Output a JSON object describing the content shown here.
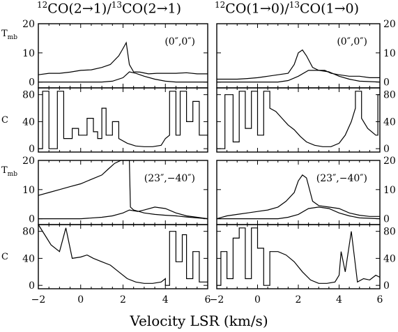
{
  "figure": {
    "column_titles": [
      {
        "iso_a": "12",
        "mol_a": "CO(2→1)/",
        "iso_b": "13",
        "mol_b": "CO(2→1)"
      },
      {
        "iso_a": "12",
        "mol_a": "CO(1→0)/",
        "iso_b": "13",
        "mol_b": "CO(1→0)"
      }
    ],
    "xlabel": "Velocity LSR (km/s)",
    "colors": {
      "line": "#000000",
      "background": "#ffffff"
    }
  },
  "chart_data": [
    {
      "type": "line",
      "panel": "top-left",
      "ylabel": "T",
      "ylabel_sub": "mb",
      "annotation": "(0″,0″)",
      "xlim": [
        -2,
        6
      ],
      "ylim": [
        -2,
        20
      ],
      "xticks": [],
      "yticks": [
        0,
        10,
        20
      ],
      "yticks_side": "left",
      "series": [
        {
          "x": [
            -2,
            -1.5,
            -1,
            -0.5,
            0,
            0.5,
            1,
            1.4,
            1.8,
            2,
            2.15,
            2.3,
            2.5,
            2.8,
            3.2,
            3.6,
            4,
            4.5,
            5,
            5.5,
            6
          ],
          "y": [
            2.5,
            3,
            3,
            3.4,
            4,
            4.2,
            5,
            6,
            9,
            11.5,
            13.5,
            6,
            3.5,
            3.4,
            2.8,
            3,
            3,
            3,
            3.2,
            2.8,
            2.8
          ]
        },
        {
          "x": [
            -2,
            -1,
            0,
            0.5,
            1,
            1.5,
            2,
            2.3,
            2.6,
            3,
            3.5,
            4,
            4.5,
            5,
            5.5,
            6
          ],
          "y": [
            0,
            0,
            0,
            0,
            0,
            0.3,
            1.5,
            3.5,
            3,
            2,
            1,
            0.3,
            0,
            0,
            0,
            0
          ]
        }
      ]
    },
    {
      "type": "line",
      "panel": "top-right",
      "ylabel": "",
      "ylabel_sub": "",
      "annotation": "(0″,0″)",
      "xlim": [
        -2,
        6
      ],
      "ylim": [
        -2,
        20
      ],
      "xticks": [],
      "yticks": [
        0,
        10,
        20
      ],
      "yticks_side": "right",
      "series": [
        {
          "x": [
            -2,
            -1,
            -0.5,
            0,
            0.5,
            1,
            1.5,
            1.8,
            2,
            2.2,
            2.4,
            2.7,
            3,
            3.3,
            3.6,
            4,
            4.5,
            5,
            5.5,
            6
          ],
          "y": [
            1,
            1,
            1.2,
            1.5,
            2,
            2.5,
            3,
            6,
            10,
            11,
            9,
            5,
            4,
            4,
            3,
            2.5,
            2,
            2,
            1.5,
            1.5
          ]
        },
        {
          "x": [
            -2,
            -1,
            0,
            1,
            1.5,
            2,
            2.5,
            3,
            3.5,
            4,
            4.5,
            5,
            6
          ],
          "y": [
            0,
            0,
            0,
            0,
            0.5,
            2,
            4,
            4,
            3.5,
            2,
            1,
            0.3,
            0
          ]
        }
      ]
    },
    {
      "type": "line",
      "panel": "upper-ratio-left",
      "ylabel": "C",
      "ylabel_sub": "",
      "annotation": "",
      "xlim": [
        -2,
        6
      ],
      "ylim": [
        -5,
        90
      ],
      "xticks": [],
      "yticks": [
        0,
        40,
        80
      ],
      "yticks_side": "left",
      "series": [
        {
          "x": [
            -2,
            -1.8,
            -1.8,
            -1.5,
            -1.5,
            -1.1,
            -1.1,
            -0.8,
            -0.8,
            -0.4,
            -0.4,
            -0.1,
            -0.1,
            0.3,
            0.3,
            0.6,
            0.6,
            0.8,
            0.8,
            1,
            1,
            1.2,
            1.2,
            1.5,
            1.5,
            1.8,
            1.8,
            2.2,
            2.6,
            3,
            3.4,
            3.8,
            4,
            4.2,
            4.2,
            4.5,
            4.5,
            4.7,
            4.7,
            5,
            5,
            5.3,
            5.3,
            5.6,
            5.6,
            6
          ],
          "y": [
            0,
            0,
            85,
            85,
            0,
            0,
            85,
            85,
            15,
            15,
            30,
            30,
            20,
            20,
            45,
            45,
            25,
            25,
            15,
            15,
            60,
            60,
            20,
            20,
            40,
            40,
            15,
            8,
            4,
            3,
            3,
            5,
            15,
            20,
            85,
            85,
            20,
            20,
            85,
            85,
            40,
            40,
            70,
            70,
            20,
            20
          ]
        }
      ]
    },
    {
      "type": "line",
      "panel": "upper-ratio-right",
      "ylabel": "",
      "ylabel_sub": "",
      "annotation": "",
      "xlim": [
        -2,
        6
      ],
      "ylim": [
        -5,
        90
      ],
      "xticks": [],
      "yticks": [
        0,
        40,
        80
      ],
      "yticks_side": "right",
      "series": [
        {
          "x": [
            -2,
            -1.6,
            -1.6,
            -1.2,
            -1.2,
            -0.9,
            -0.9,
            -0.6,
            -0.6,
            -0.3,
            -0.3,
            0,
            0,
            0.3,
            0.3,
            0.6,
            0.6,
            0.9,
            1.2,
            1.5,
            1.8,
            2.1,
            2.4,
            2.8,
            3.2,
            3.6,
            4,
            4.3,
            4.6,
            4.8,
            4.8,
            5.1,
            5.1,
            5.4,
            5.8,
            5.9,
            5.9,
            6
          ],
          "y": [
            0,
            0,
            80,
            80,
            10,
            10,
            85,
            85,
            30,
            30,
            85,
            85,
            20,
            20,
            85,
            85,
            60,
            55,
            45,
            35,
            28,
            18,
            10,
            5,
            3,
            3,
            8,
            20,
            40,
            60,
            85,
            85,
            45,
            30,
            20,
            20,
            80,
            80
          ]
        }
      ]
    },
    {
      "type": "line",
      "panel": "bottom-left",
      "ylabel": "T",
      "ylabel_sub": "mb",
      "annotation": "(23″,−40″)",
      "xlim": [
        -2,
        6
      ],
      "ylim": [
        -2,
        20
      ],
      "xticks": [],
      "yticks": [
        0,
        10,
        20
      ],
      "yticks_side": "left",
      "series": [
        {
          "x": [
            -2,
            -1.5,
            -1,
            -0.5,
            0,
            0.5,
            1,
            1.3,
            1.6,
            1.9,
            2.1,
            2.2,
            2.3,
            2.35,
            2.5,
            3,
            3.5,
            4,
            4.5,
            5,
            5.5,
            6
          ],
          "y": [
            8,
            9,
            10,
            11,
            12,
            13.5,
            15,
            17,
            19,
            20,
            20,
            20,
            20,
            4,
            3,
            2,
            1.5,
            1.2,
            1,
            0.6,
            0.3,
            0
          ]
        },
        {
          "x": [
            -2,
            -1,
            0,
            1,
            1.5,
            2,
            2.3,
            2.7,
            3,
            3.5,
            4,
            4.5,
            5,
            5.5,
            6
          ],
          "y": [
            0,
            0,
            0,
            0.5,
            1,
            2,
            3,
            2.5,
            3,
            4,
            3.5,
            2,
            1,
            0.5,
            0
          ]
        }
      ]
    },
    {
      "type": "line",
      "panel": "bottom-right",
      "ylabel": "",
      "ylabel_sub": "",
      "annotation": "(23″,−40″)",
      "xlim": [
        -2,
        6
      ],
      "ylim": [
        -2,
        20
      ],
      "xticks": [],
      "yticks": [
        0,
        10,
        20
      ],
      "yticks_side": "right",
      "series": [
        {
          "x": [
            -2,
            -1.5,
            -1,
            -0.5,
            0,
            0.5,
            1,
            1.4,
            1.8,
            2,
            2.2,
            2.4,
            2.7,
            3,
            3.5,
            4,
            4.5,
            5,
            5.5,
            6
          ],
          "y": [
            0,
            1,
            1.5,
            2,
            2.5,
            3,
            4,
            6,
            9,
            13,
            15,
            14,
            6,
            4.5,
            4,
            3.5,
            2,
            1.2,
            0.8,
            0.8
          ]
        },
        {
          "x": [
            -2,
            -1,
            0,
            1,
            1.5,
            2,
            2.5,
            3,
            3.5,
            4,
            4.5,
            5,
            6
          ],
          "y": [
            0,
            0,
            0,
            0,
            0.5,
            1.5,
            3.5,
            4,
            3.5,
            2,
            1,
            0.3,
            0
          ]
        }
      ]
    },
    {
      "type": "line",
      "panel": "lower-ratio-left",
      "ylabel": "C",
      "ylabel_sub": "",
      "annotation": "",
      "xlim": [
        -2,
        6
      ],
      "ylim": [
        -5,
        90
      ],
      "xticks": [
        -2,
        0,
        2,
        4,
        6
      ],
      "yticks": [
        0,
        40,
        80
      ],
      "yticks_side": "left",
      "series": [
        {
          "x": [
            -2,
            -1.7,
            -1.7,
            -1.4,
            -1.4,
            -1,
            -1,
            -0.7,
            -0.7,
            -0.4,
            -0.4,
            0,
            0.3,
            0.6,
            1,
            1.4,
            1.8,
            2.2,
            2.6,
            3,
            3.4,
            3.8,
            4,
            4,
            4.2,
            4.2,
            4.5,
            4.5,
            4.8,
            4.8,
            5,
            5,
            5.3,
            5.3,
            5.6,
            5.6,
            6
          ],
          "y": [
            90,
            75,
            75,
            60,
            60,
            50,
            50,
            85,
            85,
            40,
            40,
            42,
            45,
            40,
            35,
            30,
            20,
            10,
            5,
            3,
            3,
            5,
            10,
            0,
            0,
            80,
            80,
            35,
            35,
            75,
            75,
            10,
            10,
            50,
            50,
            5,
            5
          ]
        }
      ]
    },
    {
      "type": "line",
      "panel": "lower-ratio-right",
      "ylabel": "",
      "ylabel_sub": "",
      "annotation": "",
      "xlim": [
        -2,
        6
      ],
      "ylim": [
        -5,
        90
      ],
      "xticks": [
        -2,
        0,
        2,
        4,
        6
      ],
      "yticks": [
        0,
        40,
        80
      ],
      "yticks_side": "right",
      "series": [
        {
          "x": [
            -2,
            -1.8,
            -1.8,
            -1.5,
            -1.5,
            -1.2,
            -1.2,
            -0.9,
            -0.9,
            -0.6,
            -0.6,
            -0.3,
            -0.3,
            0,
            0,
            0.3,
            0.3,
            0.6,
            0.6,
            1,
            1.4,
            1.8,
            2.2,
            2.6,
            3,
            3.4,
            3.8,
            4,
            4.1,
            4.1,
            4.3,
            4.3,
            4.6,
            4.6,
            4.9,
            4.9,
            5.2,
            5.5,
            5.8,
            6
          ],
          "y": [
            0,
            0,
            50,
            50,
            10,
            10,
            70,
            70,
            85,
            85,
            10,
            10,
            85,
            85,
            55,
            55,
            0,
            0,
            50,
            50,
            45,
            35,
            20,
            8,
            3,
            3,
            5,
            15,
            50,
            50,
            20,
            20,
            80,
            80,
            5,
            5,
            10,
            8,
            15,
            12
          ]
        }
      ]
    }
  ]
}
